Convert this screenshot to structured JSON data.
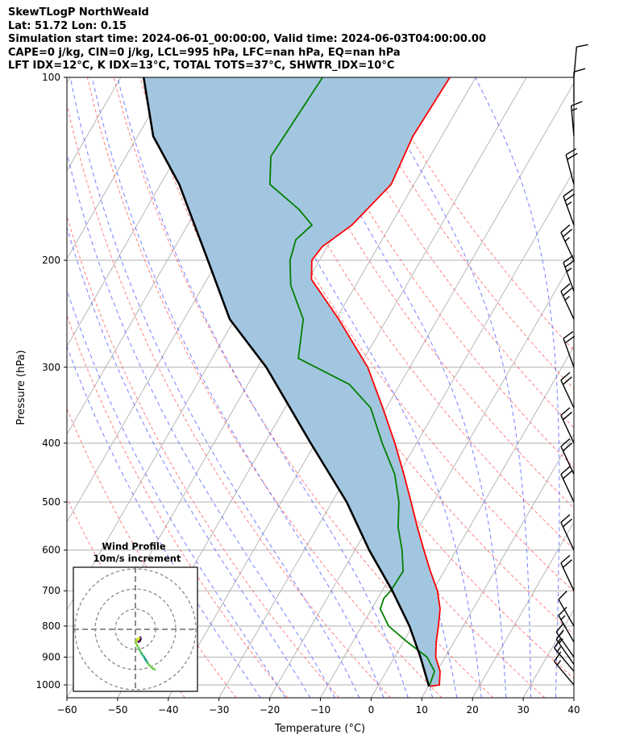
{
  "chart_data": {
    "type": "line",
    "subtype": "skew-T log-P",
    "title_lines": [
      "SkewTLogP NorthWeald",
      "Lat: 51.72   Lon: 0.15",
      "Simulation start time: 2024-06-01_00:00:00, Valid time: 2024-06-03T04:00:00.00",
      "CAPE=0 j/kg, CIN=0 j/kg, LCL=995 hPa, LFC=nan hPa, EQ=nan hPa",
      "LFT IDX=12°C, K IDX=13°C, TOTAL TOTS=37°C, SHWTR_IDX=10°C"
    ],
    "xlabel": "Temperature (°C)",
    "ylabel": "Pressure (hPa)",
    "xlim": [
      -60,
      40
    ],
    "ylim": [
      1050,
      100
    ],
    "x_ticks": [
      -60,
      -50,
      -40,
      -30,
      -20,
      -10,
      0,
      10,
      20,
      30,
      40
    ],
    "y_ticks": [
      100,
      200,
      300,
      400,
      500,
      600,
      700,
      800,
      900,
      1000
    ],
    "grid": true,
    "series": [
      {
        "name": "temperature",
        "color": "#ff0000",
        "p": [
          1005,
          1000,
          950,
          900,
          850,
          800,
          750,
          700,
          650,
          600,
          550,
          500,
          450,
          400,
          350,
          300,
          250,
          215,
          200,
          190,
          175,
          150,
          125,
          100
        ],
        "t": [
          10.3,
          12.0,
          10.6,
          8.1,
          6.5,
          5.1,
          3.5,
          0.9,
          -2.7,
          -6.4,
          -10.3,
          -14.4,
          -19.0,
          -24.3,
          -30.7,
          -38.3,
          -49.5,
          -59.4,
          -61.5,
          -61.0,
          -57.6,
          -54.5,
          -55.7,
          -55.1
        ]
      },
      {
        "name": "dewpoint",
        "color": "#008000",
        "p": [
          1005,
          1000,
          950,
          900,
          850,
          800,
          750,
          720,
          700,
          650,
          600,
          550,
          500,
          450,
          400,
          350,
          320,
          290,
          250,
          220,
          200,
          185,
          175,
          165,
          150,
          135,
          100
        ],
        "t": [
          9.9,
          10.1,
          9.5,
          6.4,
          0.8,
          -4.7,
          -8.3,
          -8.8,
          -8.3,
          -8.1,
          -10.7,
          -14.1,
          -16.8,
          -20.8,
          -26.8,
          -33.1,
          -40.0,
          -53.0,
          -56.5,
          -62.8,
          -65.8,
          -67.0,
          -65.5,
          -69.8,
          -78.4,
          -81.4,
          -80.2
        ]
      },
      {
        "name": "parcel",
        "color": "#000000",
        "p": [
          1005,
          900,
          800,
          700,
          600,
          500,
          400,
          300,
          250,
          200,
          150,
          125,
          100
        ],
        "t": [
          10.1,
          5.1,
          -0.6,
          -8.0,
          -17.2,
          -27.1,
          -40.9,
          -58.3,
          -71.0,
          -82.0,
          -96.3,
          -106.9,
          -115.5
        ]
      }
    ],
    "fill": {
      "between": [
        "parcel",
        "temperature"
      ],
      "color": "#a3c6e0"
    },
    "winds": [
      {
        "p": 1000,
        "dir": 320,
        "spd": 15
      },
      {
        "p": 950,
        "dir": 320,
        "spd": 15
      },
      {
        "p": 925,
        "dir": 325,
        "spd": 15
      },
      {
        "p": 900,
        "dir": 325,
        "spd": 15
      },
      {
        "p": 850,
        "dir": 330,
        "spd": 15
      },
      {
        "p": 800,
        "dir": 330,
        "spd": 10
      },
      {
        "p": 700,
        "dir": 335,
        "spd": 20
      },
      {
        "p": 600,
        "dir": 335,
        "spd": 20
      },
      {
        "p": 500,
        "dir": 335,
        "spd": 20
      },
      {
        "p": 450,
        "dir": 335,
        "spd": 20
      },
      {
        "p": 400,
        "dir": 335,
        "spd": 20
      },
      {
        "p": 350,
        "dir": 335,
        "spd": 20
      },
      {
        "p": 300,
        "dir": 340,
        "spd": 20
      },
      {
        "p": 250,
        "dir": 335,
        "spd": 25
      },
      {
        "p": 225,
        "dir": 340,
        "spd": 25
      },
      {
        "p": 200,
        "dir": 335,
        "spd": 25
      },
      {
        "p": 175,
        "dir": 340,
        "spd": 25
      },
      {
        "p": 150,
        "dir": 345,
        "spd": 20
      },
      {
        "p": 125,
        "dir": 355,
        "spd": 15
      },
      {
        "p": 110,
        "dir": 0,
        "spd": 10
      },
      {
        "p": 100,
        "dir": 5,
        "spd": 10
      }
    ],
    "hodograph": {
      "title": "Wind Profile",
      "subtitle": "10m/s increment",
      "ring_increment_ms": 10,
      "rings": [
        10,
        20,
        30
      ],
      "u": [
        1.6,
        1.8,
        2.4,
        2.6,
        2.2,
        1.6,
        1.4,
        1.8,
        0.6,
        0.2,
        0.8,
        2.0,
        3.0,
        4.2,
        5.0,
        6.0,
        7.0,
        8.6,
        9.6
      ],
      "v": [
        -6.0,
        -4.6,
        -4.0,
        -4.8,
        -5.8,
        -6.2,
        -5.2,
        -4.4,
        -5.2,
        -6.2,
        -8.0,
        -10.0,
        -12.0,
        -13.6,
        -15.0,
        -16.6,
        -18.0,
        -19.4,
        -20.0
      ],
      "colors": [
        "#440154",
        "#46136a",
        "#440154",
        "#3f2a7a",
        "#46116a",
        "#440154",
        "#44075f",
        "#fde725",
        "#d8e219",
        "#b5de2b",
        "#95d840",
        "#7ad151",
        "#5ec962",
        "#3bbb75",
        "#22a884",
        "#2a9d8f",
        "#5ec962",
        "#7ad151",
        "#6ccd5a"
      ]
    }
  }
}
